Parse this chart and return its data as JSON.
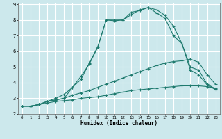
{
  "xlabel": "Humidex (Indice chaleur)",
  "bg_color": "#cce8ec",
  "grid_color": "#ffffff",
  "line_color": "#1e7a6e",
  "xlim": [
    -0.5,
    23.5
  ],
  "ylim": [
    2,
    9.1
  ],
  "xtick_labels": [
    "0",
    "1",
    "2",
    "3",
    "4",
    "5",
    "6",
    "7",
    "8",
    "9",
    "10",
    "11",
    "12",
    "13",
    "14",
    "15",
    "16",
    "17",
    "18",
    "19",
    "20",
    "21",
    "22",
    "23"
  ],
  "yticks": [
    2,
    3,
    4,
    5,
    6,
    7,
    8,
    9
  ],
  "line1_x": [
    0,
    1,
    2,
    3,
    4,
    5,
    6,
    7,
    8,
    9,
    10,
    11,
    12,
    13,
    14,
    15,
    16,
    17,
    18,
    19,
    20,
    21,
    22,
    23
  ],
  "line1_y": [
    2.5,
    2.5,
    2.6,
    2.7,
    2.8,
    2.85,
    2.9,
    3.0,
    3.05,
    3.1,
    3.2,
    3.3,
    3.4,
    3.5,
    3.55,
    3.6,
    3.65,
    3.7,
    3.75,
    3.8,
    3.8,
    3.8,
    3.75,
    3.65
  ],
  "line2_x": [
    0,
    1,
    2,
    3,
    4,
    5,
    6,
    7,
    8,
    9,
    10,
    11,
    12,
    13,
    14,
    15,
    16,
    17,
    18,
    19,
    20,
    21,
    22,
    23
  ],
  "line2_y": [
    2.5,
    2.5,
    2.6,
    2.8,
    2.9,
    3.0,
    3.2,
    3.35,
    3.5,
    3.7,
    3.9,
    4.1,
    4.3,
    4.5,
    4.7,
    4.9,
    5.1,
    5.25,
    5.35,
    5.4,
    5.5,
    5.3,
    4.5,
    3.9
  ],
  "line3_x": [
    0,
    1,
    2,
    3,
    4,
    5,
    6,
    7,
    8,
    9,
    10,
    11,
    12,
    13,
    14,
    15,
    16,
    17,
    18,
    19,
    20,
    21,
    22,
    23
  ],
  "line3_y": [
    2.5,
    2.5,
    2.6,
    2.8,
    2.9,
    3.0,
    3.7,
    4.4,
    5.2,
    6.25,
    8.0,
    8.0,
    8.0,
    8.5,
    8.6,
    8.8,
    8.45,
    8.1,
    7.0,
    6.5,
    5.0,
    4.8,
    3.9,
    3.6
  ],
  "line4_x": [
    0,
    1,
    2,
    3,
    4,
    5,
    6,
    7,
    8,
    9,
    10,
    11,
    12,
    13,
    14,
    15,
    16,
    17,
    18,
    19,
    20,
    21,
    22,
    23
  ],
  "line4_y": [
    2.5,
    2.5,
    2.6,
    2.8,
    3.0,
    3.25,
    3.7,
    4.2,
    5.25,
    6.3,
    8.0,
    7.95,
    8.0,
    8.35,
    8.65,
    8.8,
    8.65,
    8.3,
    7.6,
    6.5,
    4.8,
    4.5,
    3.85,
    3.55
  ]
}
